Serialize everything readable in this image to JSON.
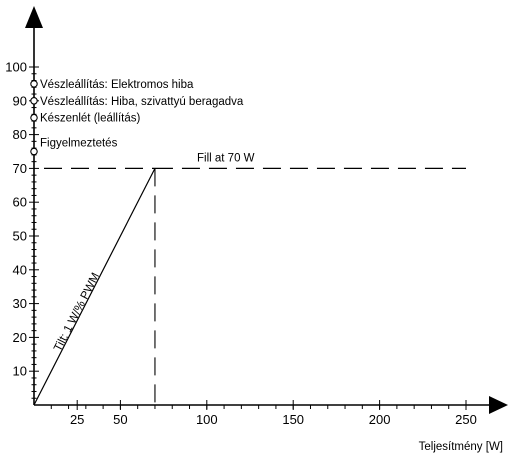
{
  "chart_data": {
    "type": "line",
    "xlabel": "Teljesítmény [W]",
    "ylabel": "",
    "xlim": [
      0,
      260
    ],
    "ylim": [
      0,
      100
    ],
    "x_ticks": [
      25,
      50,
      100,
      150,
      200,
      250
    ],
    "y_ticks": [
      10,
      20,
      30,
      40,
      50,
      60,
      70,
      80,
      90,
      100
    ],
    "series": [
      {
        "name": "Tilt: 1 W/% PWM",
        "x": [
          0,
          70
        ],
        "y": [
          0,
          70
        ],
        "style": "solid"
      },
      {
        "name": "Fill at 70 W",
        "x": [
          70,
          250
        ],
        "y": [
          70,
          70
        ],
        "style": "dashed"
      }
    ],
    "reference_lines": [
      {
        "orientation": "vertical",
        "x": 70,
        "y_range": [
          0,
          70
        ],
        "style": "dashed"
      }
    ],
    "status_markers": [
      {
        "y": 95,
        "label": "Vészleállítás: Elektromos hiba"
      },
      {
        "y": 90,
        "label": "Vészleállítás: Hiba, szivattyú beragadva"
      },
      {
        "y": 85,
        "label": "Készenlét (leállítás)"
      },
      {
        "y": 75,
        "label": "Figyelmeztetés"
      }
    ],
    "annotations": {
      "slope_label": "Tilt: 1 W/% PWM",
      "fill_label": "Fill at 70 W"
    },
    "grid": false
  }
}
